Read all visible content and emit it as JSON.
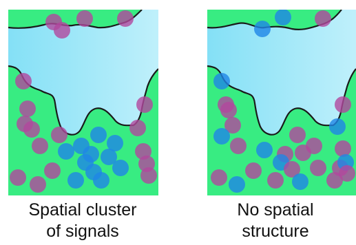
{
  "colors": {
    "tissue": "#38ec82",
    "background": "#bff0fb",
    "background_edge": "#84e0f6",
    "boundary": "#1a1a1a",
    "dot_magenta": "#b2479d",
    "dot_blue": "#1f86e6"
  },
  "panels": [
    {
      "caption_lines": [
        "Spatial cluster",
        "of signals"
      ],
      "pattern": "clustered"
    },
    {
      "caption_lines": [
        "No spatial",
        "structure"
      ],
      "pattern": "random"
    }
  ]
}
